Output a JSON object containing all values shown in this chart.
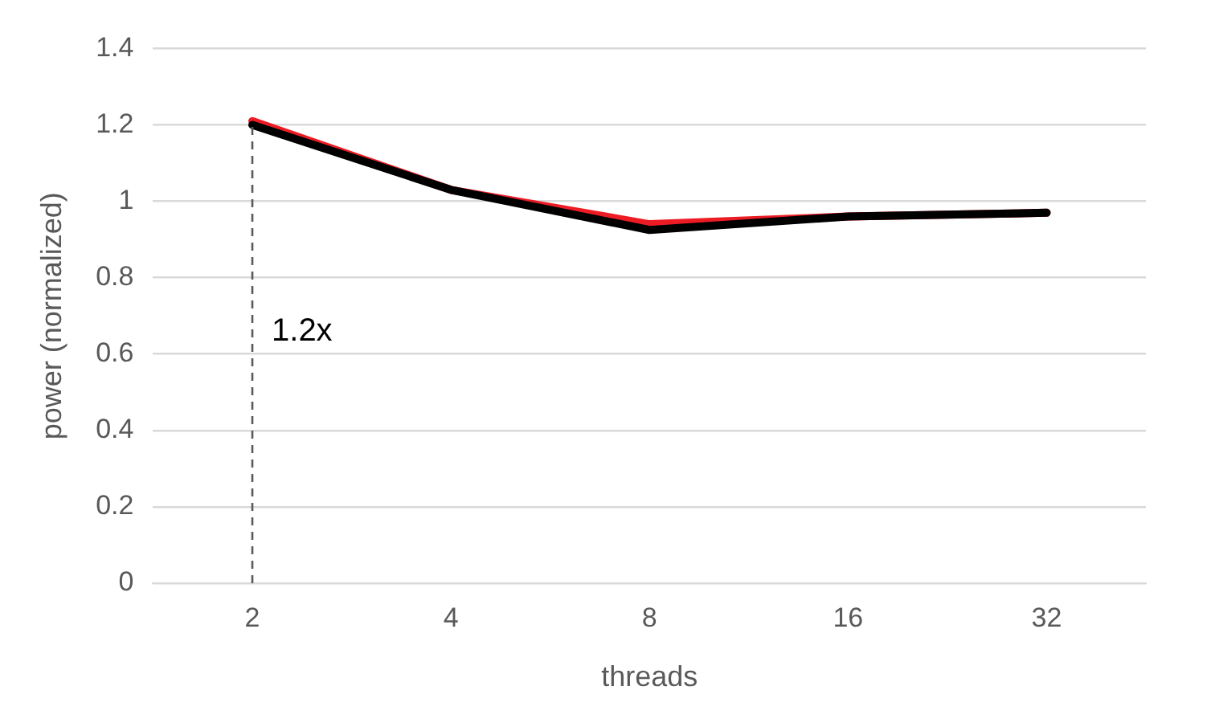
{
  "chart_data": {
    "type": "line",
    "xlabel": "threads",
    "ylabel": "power (normalized)",
    "categories": [
      "2",
      "4",
      "8",
      "16",
      "32"
    ],
    "series": [
      {
        "color": "#000000",
        "values": [
          1.2,
          1.03,
          0.925,
          0.96,
          0.97
        ]
      },
      {
        "color": "#ed1c24",
        "values": [
          1.21,
          1.03,
          0.94,
          0.96,
          0.97
        ]
      }
    ],
    "ylim": [
      0,
      1.4
    ],
    "yticks": [
      0,
      0.2,
      0.4,
      0.6,
      0.8,
      1,
      1.2,
      1.4
    ],
    "grid": "y",
    "legend": false,
    "marker": "none",
    "line_style": "solid",
    "ref_lines": [
      {
        "axis": "x",
        "value": "2",
        "label": "1.2x",
        "color": "#595959",
        "line_style": "dashed"
      }
    ]
  }
}
